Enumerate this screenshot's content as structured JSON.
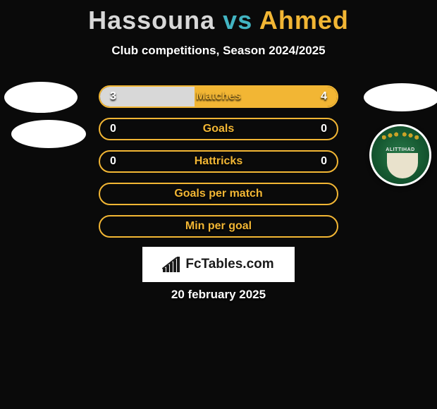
{
  "header": {
    "player1": "Hassouna",
    "vs": "vs",
    "player2": "Ahmed",
    "subtitle": "Club competitions, Season 2024/2025"
  },
  "colors": {
    "player1": "#d8d8d8",
    "player2": "#f2b634",
    "accent": "#42b4c2",
    "bg": "#0a0a0a"
  },
  "club_badge": {
    "text": "ALITTIHAD",
    "ring_color": "#165a32",
    "star_color": "#c9a227"
  },
  "stats": [
    {
      "label": "Matches",
      "left_val": "3",
      "right_val": "4",
      "left_num": 3,
      "right_num": 4,
      "left_fill_pct": 40,
      "right_fill_pct": 60,
      "left_fill_color": "#d8d8d8",
      "right_fill_color": "#f2b634",
      "border_color": "#f2b634",
      "label_color": "#f2b634"
    },
    {
      "label": "Goals",
      "left_val": "0",
      "right_val": "0",
      "left_num": 0,
      "right_num": 0,
      "left_fill_pct": 0,
      "right_fill_pct": 0,
      "left_fill_color": "#d8d8d8",
      "right_fill_color": "#f2b634",
      "border_color": "#f2b634",
      "label_color": "#f2b634"
    },
    {
      "label": "Hattricks",
      "left_val": "0",
      "right_val": "0",
      "left_num": 0,
      "right_num": 0,
      "left_fill_pct": 0,
      "right_fill_pct": 0,
      "left_fill_color": "#d8d8d8",
      "right_fill_color": "#f2b634",
      "border_color": "#f2b634",
      "label_color": "#f2b634"
    },
    {
      "label": "Goals per match",
      "left_val": "",
      "right_val": "",
      "left_num": 0,
      "right_num": 0,
      "left_fill_pct": 0,
      "right_fill_pct": 0,
      "left_fill_color": "#d8d8d8",
      "right_fill_color": "#f2b634",
      "border_color": "#f2b634",
      "label_color": "#f2b634"
    },
    {
      "label": "Min per goal",
      "left_val": "",
      "right_val": "",
      "left_num": 0,
      "right_num": 0,
      "left_fill_pct": 0,
      "right_fill_pct": 0,
      "left_fill_color": "#d8d8d8",
      "right_fill_color": "#f2b634",
      "border_color": "#f2b634",
      "label_color": "#f2b634"
    }
  ],
  "watermark": {
    "text": "FcTables.com",
    "icon_bars": [
      6,
      10,
      14,
      18,
      22
    ]
  },
  "date": "20 february 2025"
}
